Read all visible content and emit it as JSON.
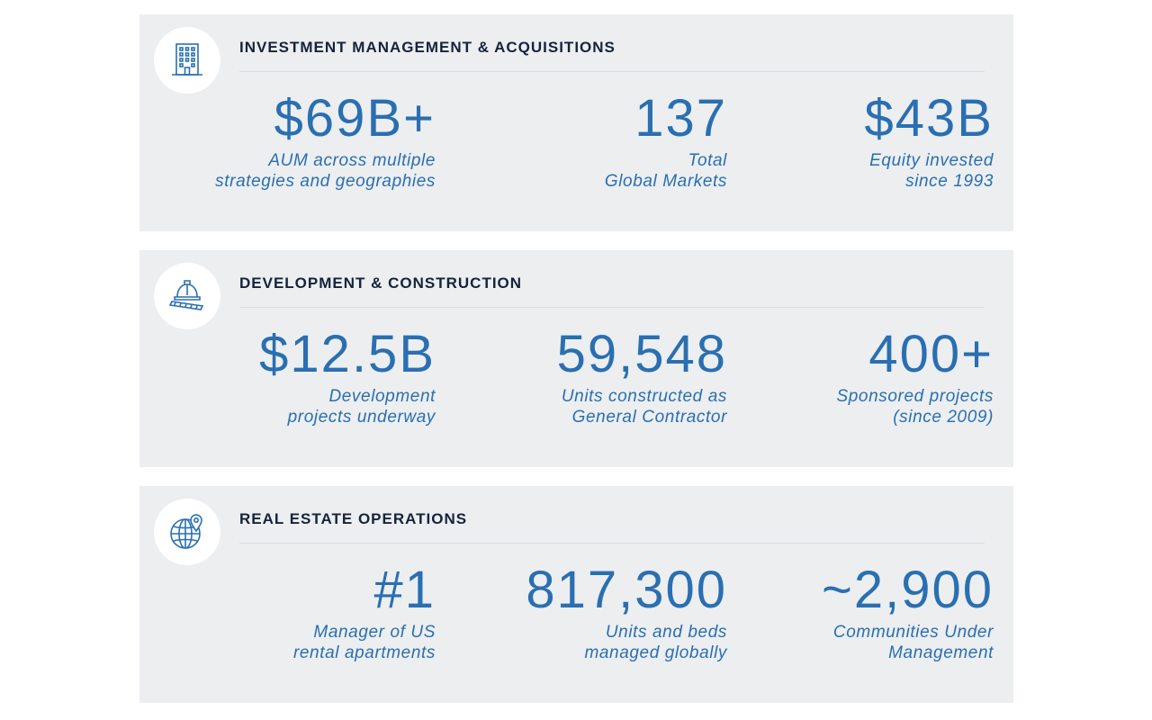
{
  "colors": {
    "panel_bg": "#eceef0",
    "accent_blue": "#2a6fb1",
    "title_navy": "#15233b",
    "icon_circle": "#ffffff"
  },
  "sections": [
    {
      "icon": "building-icon",
      "title": "INVESTMENT MANAGEMENT & ACQUISITIONS",
      "stats": [
        {
          "value": "$69B+",
          "desc": "AUM across multiple\nstrategies and geographies"
        },
        {
          "value": "137",
          "desc": "Total\nGlobal Markets"
        },
        {
          "value": "$43B",
          "desc": "Equity invested\nsince 1993"
        }
      ]
    },
    {
      "icon": "hard-hat-blueprint-icon",
      "title": "DEVELOPMENT & CONSTRUCTION",
      "stats": [
        {
          "value": "$12.5B",
          "desc": "Development\nprojects underway"
        },
        {
          "value": "59,548",
          "desc": "Units constructed as\nGeneral Contractor"
        },
        {
          "value": "400+",
          "desc": "Sponsored projects\n(since 2009)"
        }
      ]
    },
    {
      "icon": "globe-location-pin-icon",
      "title": "REAL ESTATE OPERATIONS",
      "stats": [
        {
          "value": "#1",
          "desc": "Manager of US\nrental apartments"
        },
        {
          "value": "817,300",
          "desc": "Units and beds\nmanaged globally"
        },
        {
          "value": "~2,900",
          "desc": "Communities Under\nManagement"
        }
      ]
    }
  ]
}
